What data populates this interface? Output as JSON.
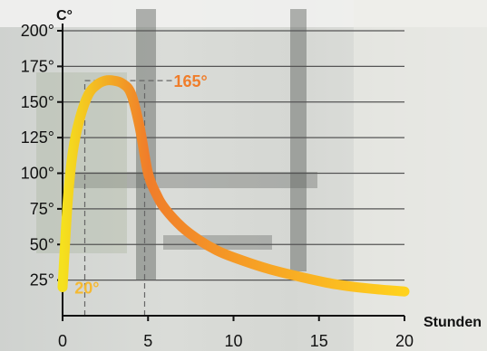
{
  "chart_data": {
    "type": "line",
    "ylabel": "C°",
    "xlabel": "Stunden",
    "xlim": [
      0,
      20
    ],
    "ylim": [
      0,
      200
    ],
    "x_ticks": [
      "0",
      "5",
      "10",
      "15",
      "20"
    ],
    "y_ticks": [
      "25°",
      "50°",
      "75°",
      "100°",
      "125°",
      "150°",
      "175°",
      "200°"
    ],
    "grid": "horizontal",
    "series": [
      {
        "x": [
          0,
          0.3,
          0.6,
          1,
          1.5,
          2,
          2.5,
          3,
          3.5,
          4,
          4.5,
          5,
          5.5,
          6,
          7,
          8,
          9,
          10,
          12,
          14,
          16,
          18,
          20
        ],
        "y": [
          20,
          80,
          115,
          138,
          155,
          162,
          165,
          165,
          163,
          156,
          133,
          100,
          85,
          75,
          62,
          53,
          46,
          41,
          33,
          27,
          22,
          19,
          17
        ]
      }
    ],
    "annotations": [
      {
        "text": "165°",
        "x": 6.5,
        "y": 165,
        "color": "#f07d2a"
      },
      {
        "text": "20°",
        "x": 0.7,
        "y": 20,
        "color": "#f5b932"
      }
    ],
    "reference_lines": [
      {
        "kind": "horizontal",
        "y": 165,
        "x_from": 1.3,
        "x_to": 6.6
      },
      {
        "kind": "vertical",
        "x": 1.3,
        "y_from": 0,
        "y_to": 165
      },
      {
        "kind": "vertical",
        "x": 4.8,
        "y_from": 0,
        "y_to": 165
      }
    ],
    "colors": {
      "line_start": "#f5e11e",
      "line_peak": "#f07d2a",
      "line_end": "#ffd21e",
      "grid": "#555555"
    }
  }
}
